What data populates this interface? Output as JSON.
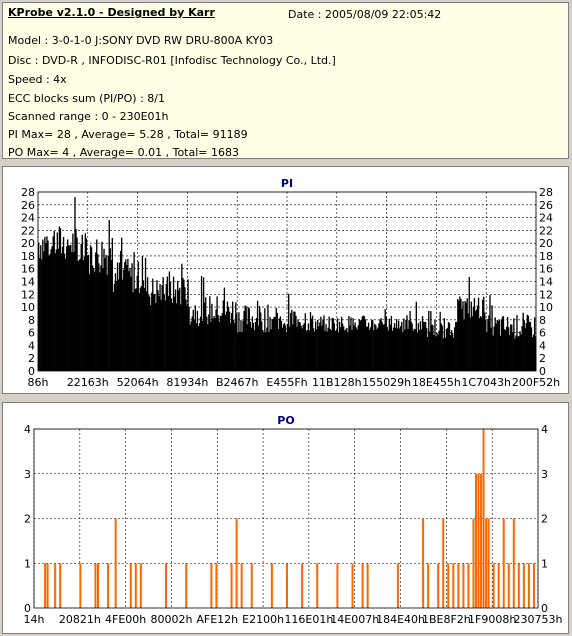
{
  "header": {
    "title": "KProbe v2.1.0 - Designed by Karr",
    "date": "Date : 2005/08/09 22:05:42",
    "lines": [
      "Model : 3-0-1-0 J:SONY    DVD RW DRU-800A  KY03",
      "Disc : DVD-R , INFODISC-R01 [Infodisc Technology Co., Ltd.]",
      "Speed : 4x",
      "ECC blocks sum (PI/PO) : 8/1",
      "Scanned range : 0 - 230E01h",
      "PI Max= 28 , Average= 5.28 , Total= 91189",
      "PO Max= 4 , Average= 0.01 , Total= 1683"
    ]
  },
  "chart_data": [
    {
      "type": "bar",
      "title": "PI",
      "ylim": [
        0,
        28
      ],
      "yticks": [
        0,
        2,
        4,
        6,
        8,
        10,
        12,
        14,
        16,
        18,
        20,
        22,
        24,
        26,
        28
      ],
      "xticks": [
        "86h",
        "22163h",
        "52064h",
        "81934h",
        "B2467h",
        "E455Fh",
        "11B128h",
        "155029h",
        "18E455h",
        "1C7043h",
        "200F52h"
      ],
      "grid": true,
      "color": "#000000",
      "bins": 480,
      "segments": [
        {
          "start": 0.0,
          "end": 0.08,
          "base": 17,
          "peak": 28
        },
        {
          "start": 0.08,
          "end": 0.15,
          "base": 15,
          "peak": 27
        },
        {
          "start": 0.15,
          "end": 0.22,
          "base": 12,
          "peak": 22
        },
        {
          "start": 0.22,
          "end": 0.3,
          "base": 10,
          "peak": 19
        },
        {
          "start": 0.3,
          "end": 0.4,
          "base": 7,
          "peak": 16
        },
        {
          "start": 0.4,
          "end": 0.55,
          "base": 6,
          "peak": 14
        },
        {
          "start": 0.55,
          "end": 0.78,
          "base": 6,
          "peak": 11
        },
        {
          "start": 0.78,
          "end": 0.84,
          "base": 5,
          "peak": 10
        },
        {
          "start": 0.84,
          "end": 0.9,
          "base": 8,
          "peak": 15
        },
        {
          "start": 0.9,
          "end": 1.0,
          "base": 5,
          "peak": 12
        }
      ]
    },
    {
      "type": "bar",
      "title": "PO",
      "ylim": [
        0,
        4
      ],
      "yticks": [
        0,
        1,
        2,
        3,
        4
      ],
      "xticks": [
        "14h",
        "20821h",
        "4FE00h",
        "80002h",
        "AFE12h",
        "E2100h",
        "116E01h",
        "14E007h",
        "184E40h",
        "1BE8F2h",
        "1F9008h",
        "230753h"
      ],
      "grid": true,
      "color": "#ff6600",
      "spikes": [
        {
          "x": 0.02,
          "v": 1
        },
        {
          "x": 0.025,
          "v": 1
        },
        {
          "x": 0.04,
          "v": 1
        },
        {
          "x": 0.05,
          "v": 1
        },
        {
          "x": 0.09,
          "v": 1
        },
        {
          "x": 0.12,
          "v": 1
        },
        {
          "x": 0.125,
          "v": 1
        },
        {
          "x": 0.145,
          "v": 1
        },
        {
          "x": 0.16,
          "v": 2
        },
        {
          "x": 0.19,
          "v": 1
        },
        {
          "x": 0.2,
          "v": 1
        },
        {
          "x": 0.21,
          "v": 1
        },
        {
          "x": 0.26,
          "v": 1
        },
        {
          "x": 0.3,
          "v": 1
        },
        {
          "x": 0.35,
          "v": 1
        },
        {
          "x": 0.36,
          "v": 1
        },
        {
          "x": 0.39,
          "v": 1
        },
        {
          "x": 0.4,
          "v": 2
        },
        {
          "x": 0.41,
          "v": 1
        },
        {
          "x": 0.43,
          "v": 1
        },
        {
          "x": 0.47,
          "v": 1
        },
        {
          "x": 0.5,
          "v": 1
        },
        {
          "x": 0.53,
          "v": 1
        },
        {
          "x": 0.56,
          "v": 1
        },
        {
          "x": 0.6,
          "v": 1
        },
        {
          "x": 0.63,
          "v": 1
        },
        {
          "x": 0.65,
          "v": 1
        },
        {
          "x": 0.66,
          "v": 1
        },
        {
          "x": 0.72,
          "v": 1
        },
        {
          "x": 0.77,
          "v": 2
        },
        {
          "x": 0.78,
          "v": 1
        },
        {
          "x": 0.8,
          "v": 1
        },
        {
          "x": 0.81,
          "v": 2
        },
        {
          "x": 0.82,
          "v": 1
        },
        {
          "x": 0.83,
          "v": 1
        },
        {
          "x": 0.84,
          "v": 1
        },
        {
          "x": 0.85,
          "v": 1
        },
        {
          "x": 0.86,
          "v": 1
        },
        {
          "x": 0.87,
          "v": 2
        },
        {
          "x": 0.875,
          "v": 3
        },
        {
          "x": 0.88,
          "v": 3
        },
        {
          "x": 0.885,
          "v": 3
        },
        {
          "x": 0.89,
          "v": 4
        },
        {
          "x": 0.895,
          "v": 2
        },
        {
          "x": 0.9,
          "v": 2
        },
        {
          "x": 0.91,
          "v": 1
        },
        {
          "x": 0.92,
          "v": 1
        },
        {
          "x": 0.93,
          "v": 2
        },
        {
          "x": 0.94,
          "v": 1
        },
        {
          "x": 0.95,
          "v": 2
        },
        {
          "x": 0.96,
          "v": 1
        },
        {
          "x": 0.97,
          "v": 1
        },
        {
          "x": 0.98,
          "v": 1
        },
        {
          "x": 0.99,
          "v": 1
        }
      ]
    }
  ]
}
